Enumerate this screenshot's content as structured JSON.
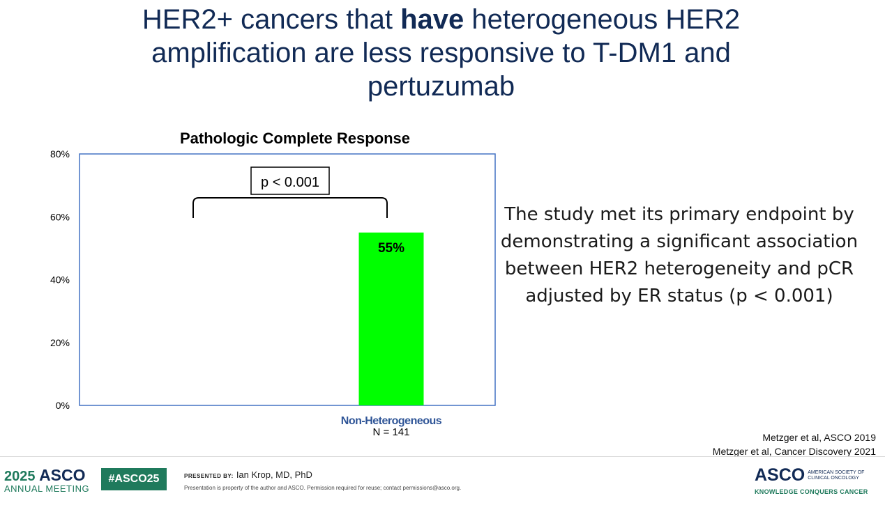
{
  "slide": {
    "title_pre": "HER2+ cancers that ",
    "title_bold": "have",
    "title_post": " heterogeneous HER2 amplification are less responsive to T-DM1 and pertuzumab",
    "side_text": "The study met its primary endpoint by demonstrating a significant association between HER2 heterogeneity and pCR adjusted by ER status (p < 0.001)",
    "references": [
      "Metzger et al, ASCO 2019",
      "Metzger et al, Cancer Discovery 2021"
    ]
  },
  "chart_data": {
    "type": "bar",
    "title": "Pathologic Complete Response",
    "categories": [
      "",
      "Non-Heterogeneous"
    ],
    "category_sublabels": [
      "",
      "N = 141"
    ],
    "values": [
      null,
      55
    ],
    "data_labels": [
      "",
      "55%"
    ],
    "ylim": [
      0,
      80
    ],
    "yticks": [
      0,
      20,
      40,
      60,
      80
    ],
    "ytick_labels": [
      "0%",
      "20%",
      "40%",
      "60%",
      "80%"
    ],
    "xlabel": "",
    "ylabel": "",
    "annotation": "p < 0.001",
    "bar_color": "#00ff00",
    "axis_color": "#4472c4",
    "category_label_color": "#2f5597"
  },
  "footer": {
    "meeting_year": "2025",
    "meeting_brand": "ASCO",
    "meeting_sub": "ANNUAL MEETING",
    "hashtag": "#ASCO25",
    "presented_by_label": "PRESENTED BY:",
    "presenter": "Ian Krop, MD, PhD",
    "disclaimer": "Presentation is property of the author and ASCO. Permission required for reuse; contact permissions@asco.org.",
    "logo_word": "ASCO",
    "logo_society": "AMERICAN SOCIETY OF CLINICAL ONCOLOGY",
    "logo_tagline": "KNOWLEDGE CONQUERS CANCER",
    "brand_color": "#1f7a5c",
    "navy_color": "#112a55"
  }
}
